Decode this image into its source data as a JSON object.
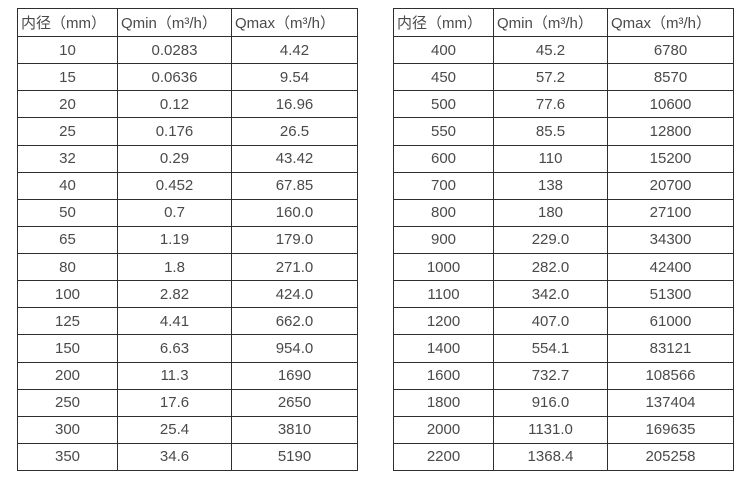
{
  "colors": {
    "text": "#4a4a4a",
    "border": "#2e2e2e",
    "background": "#ffffff"
  },
  "tables": [
    {
      "name": "flow-table-small-diameters",
      "headers": [
        "内径（mm）",
        "Qmin（m³/h）",
        "Qmax（m³/h）"
      ],
      "rows": [
        [
          "10",
          "0.0283",
          "4.42"
        ],
        [
          "15",
          "0.0636",
          "9.54"
        ],
        [
          "20",
          "0.12",
          "16.96"
        ],
        [
          "25",
          "0.176",
          "26.5"
        ],
        [
          "32",
          "0.29",
          "43.42"
        ],
        [
          "40",
          "0.452",
          "67.85"
        ],
        [
          "50",
          "0.7",
          "160.0"
        ],
        [
          "65",
          "1.19",
          "179.0"
        ],
        [
          "80",
          "1.8",
          "271.0"
        ],
        [
          "100",
          "2.82",
          "424.0"
        ],
        [
          "125",
          "4.41",
          "662.0"
        ],
        [
          "150",
          "6.63",
          "954.0"
        ],
        [
          "200",
          "11.3",
          "1690"
        ],
        [
          "250",
          "17.6",
          "2650"
        ],
        [
          "300",
          "25.4",
          "3810"
        ],
        [
          "350",
          "34.6",
          "5190"
        ]
      ]
    },
    {
      "name": "flow-table-large-diameters",
      "headers": [
        "内径（mm）",
        "Qmin（m³/h）",
        "Qmax（m³/h）"
      ],
      "rows": [
        [
          "400",
          "45.2",
          "6780"
        ],
        [
          "450",
          "57.2",
          "8570"
        ],
        [
          "500",
          "77.6",
          "10600"
        ],
        [
          "550",
          "85.5",
          "12800"
        ],
        [
          "600",
          "110",
          "15200"
        ],
        [
          "700",
          "138",
          "20700"
        ],
        [
          "800",
          "180",
          "27100"
        ],
        [
          "900",
          "229.0",
          "34300"
        ],
        [
          "1000",
          "282.0",
          "42400"
        ],
        [
          "1100",
          "342.0",
          "51300"
        ],
        [
          "1200",
          "407.0",
          "61000"
        ],
        [
          "1400",
          "554.1",
          "83121"
        ],
        [
          "1600",
          "732.7",
          "108566"
        ],
        [
          "1800",
          "916.0",
          "137404"
        ],
        [
          "2000",
          "1131.0",
          "169635"
        ],
        [
          "2200",
          "1368.4",
          "205258"
        ]
      ]
    }
  ]
}
